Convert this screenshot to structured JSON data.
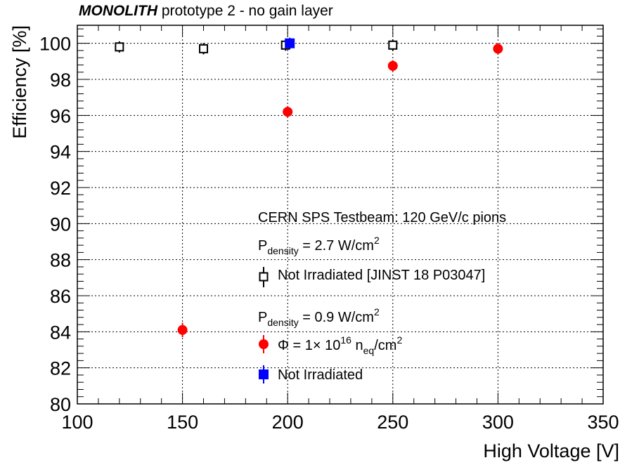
{
  "chart_data": {
    "type": "scatter",
    "title_bold": "MONOLITH",
    "title_rest": " prototype 2 - no gain layer",
    "xlabel": "High Voltage [V]",
    "ylabel": "Efficiency [%]",
    "xlim": [
      100,
      350
    ],
    "ylim": [
      80,
      101
    ],
    "x_ticks": [
      100,
      150,
      200,
      250,
      300,
      350
    ],
    "y_ticks": [
      80,
      82,
      84,
      86,
      88,
      90,
      92,
      94,
      96,
      98,
      100
    ],
    "grid": true,
    "legend_placement": "lower-right",
    "annotations": {
      "testbeam": "CERN SPS Testbeam: 120 GeV/c pions",
      "pdensity1_base": "P",
      "pdensity1_sub": "density",
      "pdensity1_value": " = 2.7 W/cm",
      "pdensity1_sup": "2",
      "pdensity2_base": "P",
      "pdensity2_sub": "density",
      "pdensity2_value": " = 0.9 W/cm",
      "pdensity2_sup": "2"
    },
    "series": [
      {
        "name": "Not Irradiated [JINST 18 P03047]",
        "marker": "open-square",
        "color": "#000000",
        "x": [
          120,
          160,
          199,
          250
        ],
        "y": [
          99.8,
          99.7,
          99.9,
          99.9
        ],
        "yerr": [
          0.2,
          0.2,
          0.2,
          0.2
        ]
      },
      {
        "name_parts": {
          "phi": "Φ = 1",
          "times": "×",
          "ten": " 10",
          "exp": "16",
          "n": " n",
          "eq": "eq",
          "unit": "/cm",
          "unit_sup": "2"
        },
        "marker": "filled-circle",
        "color": "#ff0000",
        "x": [
          150,
          200,
          250,
          300
        ],
        "y": [
          84.1,
          96.2,
          98.75,
          99.7
        ],
        "yerr": [
          0.4,
          0.2,
          0.15,
          0.1
        ]
      },
      {
        "name": "Not Irradiated",
        "marker": "filled-square",
        "color": "#0000ff",
        "x": [
          201
        ],
        "y": [
          100.0
        ],
        "yerr": [
          0.2
        ]
      }
    ]
  }
}
